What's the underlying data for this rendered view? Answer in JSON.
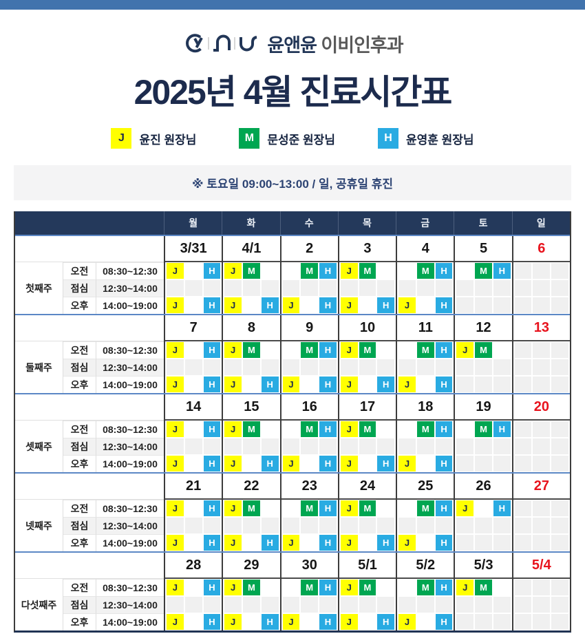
{
  "brand": {
    "name": "윤앤윤",
    "suffix": "이비인후과"
  },
  "title": "2025년 4월 진료시간표",
  "legend": [
    {
      "code": "J",
      "name": "윤진 원장님",
      "color": "#ffff00",
      "text_color": "#1c2b4d"
    },
    {
      "code": "M",
      "name": "문성준 원장님",
      "color": "#00a651",
      "text_color": "#ffffff"
    },
    {
      "code": "H",
      "name": "윤영훈 원장님",
      "color": "#29abe2",
      "text_color": "#ffffff"
    }
  ],
  "notice": "※ 토요일  09:00~13:00 / 일, 공휴일 휴진",
  "colors": {
    "top_bar": "#4173ad",
    "header_bg": "#24395b",
    "week_divider": "#5b87c5",
    "sunday_red": "#e8131d",
    "closed_cell": "#f0f0f0",
    "doctor_J": "#ffff00",
    "doctor_M": "#00a651",
    "doctor_H": "#29abe2"
  },
  "table": {
    "day_headers": [
      "월",
      "화",
      "수",
      "목",
      "금",
      "토",
      "일"
    ],
    "slots": [
      {
        "label": "오전",
        "time": "08:30~12:30"
      },
      {
        "label": "점심",
        "time": "12:30~14:00"
      },
      {
        "label": "오후",
        "time": "14:00~19:00"
      }
    ],
    "weeks": [
      {
        "label": "첫째주",
        "dates": [
          "3/31",
          "4/1",
          "2",
          "3",
          "4",
          "5",
          "6"
        ],
        "am": [
          [
            "J",
            "",
            "H"
          ],
          [
            "J",
            "M",
            ""
          ],
          [
            "",
            "M",
            "H"
          ],
          [
            "J",
            "M",
            ""
          ],
          [
            "",
            "M",
            "H"
          ],
          [
            "",
            "M",
            "H"
          ],
          "closed"
        ],
        "lunch": [
          "closed",
          "closed",
          "closed",
          "closed",
          "closed",
          "closed",
          "closed"
        ],
        "pm": [
          [
            "J",
            "",
            "H"
          ],
          [
            "J",
            "",
            "H"
          ],
          [
            "J",
            "",
            "H"
          ],
          [
            "J",
            "",
            "H"
          ],
          [
            "J",
            "",
            "H"
          ],
          "closed",
          "closed"
        ]
      },
      {
        "label": "둘째주",
        "dates": [
          "7",
          "8",
          "9",
          "10",
          "11",
          "12",
          "13"
        ],
        "am": [
          [
            "J",
            "",
            "H"
          ],
          [
            "J",
            "M",
            ""
          ],
          [
            "",
            "M",
            "H"
          ],
          [
            "J",
            "M",
            ""
          ],
          [
            "",
            "M",
            "H"
          ],
          [
            "J",
            "M",
            ""
          ],
          "closed"
        ],
        "lunch": [
          "closed",
          "closed",
          "closed",
          "closed",
          "closed",
          "closed",
          "closed"
        ],
        "pm": [
          [
            "J",
            "",
            "H"
          ],
          [
            "J",
            "",
            "H"
          ],
          [
            "J",
            "",
            "H"
          ],
          [
            "J",
            "",
            "H"
          ],
          [
            "J",
            "",
            "H"
          ],
          "closed",
          "closed"
        ]
      },
      {
        "label": "셋째주",
        "dates": [
          "14",
          "15",
          "16",
          "17",
          "18",
          "19",
          "20"
        ],
        "am": [
          [
            "J",
            "",
            "H"
          ],
          [
            "J",
            "M",
            ""
          ],
          [
            "",
            "M",
            "H"
          ],
          [
            "J",
            "M",
            ""
          ],
          [
            "",
            "M",
            "H"
          ],
          [
            "",
            "M",
            "H"
          ],
          "closed"
        ],
        "lunch": [
          "closed",
          "closed",
          "closed",
          "closed",
          "closed",
          "closed",
          "closed"
        ],
        "pm": [
          [
            "J",
            "",
            "H"
          ],
          [
            "J",
            "",
            "H"
          ],
          [
            "J",
            "",
            "H"
          ],
          [
            "J",
            "",
            "H"
          ],
          [
            "J",
            "",
            "H"
          ],
          "closed",
          "closed"
        ]
      },
      {
        "label": "넷째주",
        "dates": [
          "21",
          "22",
          "23",
          "24",
          "25",
          "26",
          "27"
        ],
        "am": [
          [
            "J",
            "",
            "H"
          ],
          [
            "J",
            "M",
            ""
          ],
          [
            "",
            "M",
            "H"
          ],
          [
            "J",
            "M",
            ""
          ],
          [
            "",
            "M",
            "H"
          ],
          [
            "J",
            "",
            "H"
          ],
          "closed"
        ],
        "lunch": [
          "closed",
          "closed",
          "closed",
          "closed",
          "closed",
          "closed",
          "closed"
        ],
        "pm": [
          [
            "J",
            "",
            "H"
          ],
          [
            "J",
            "",
            "H"
          ],
          [
            "J",
            "",
            "H"
          ],
          [
            "J",
            "",
            "H"
          ],
          [
            "J",
            "",
            "H"
          ],
          "closed",
          "closed"
        ]
      },
      {
        "label": "다섯째주",
        "dates": [
          "28",
          "29",
          "30",
          "5/1",
          "5/2",
          "5/3",
          "5/4"
        ],
        "am": [
          [
            "J",
            "",
            "H"
          ],
          [
            "J",
            "M",
            ""
          ],
          [
            "",
            "M",
            "H"
          ],
          [
            "J",
            "M",
            ""
          ],
          [
            "",
            "M",
            "H"
          ],
          [
            "J",
            "M",
            ""
          ],
          "closed"
        ],
        "lunch": [
          "closed",
          "closed",
          "closed",
          "closed",
          "closed",
          "closed",
          "closed"
        ],
        "pm": [
          [
            "J",
            "",
            "H"
          ],
          [
            "J",
            "",
            "H"
          ],
          [
            "J",
            "",
            "H"
          ],
          [
            "J",
            "",
            "H"
          ],
          [
            "J",
            "",
            "H"
          ],
          "closed",
          "closed"
        ]
      }
    ]
  }
}
